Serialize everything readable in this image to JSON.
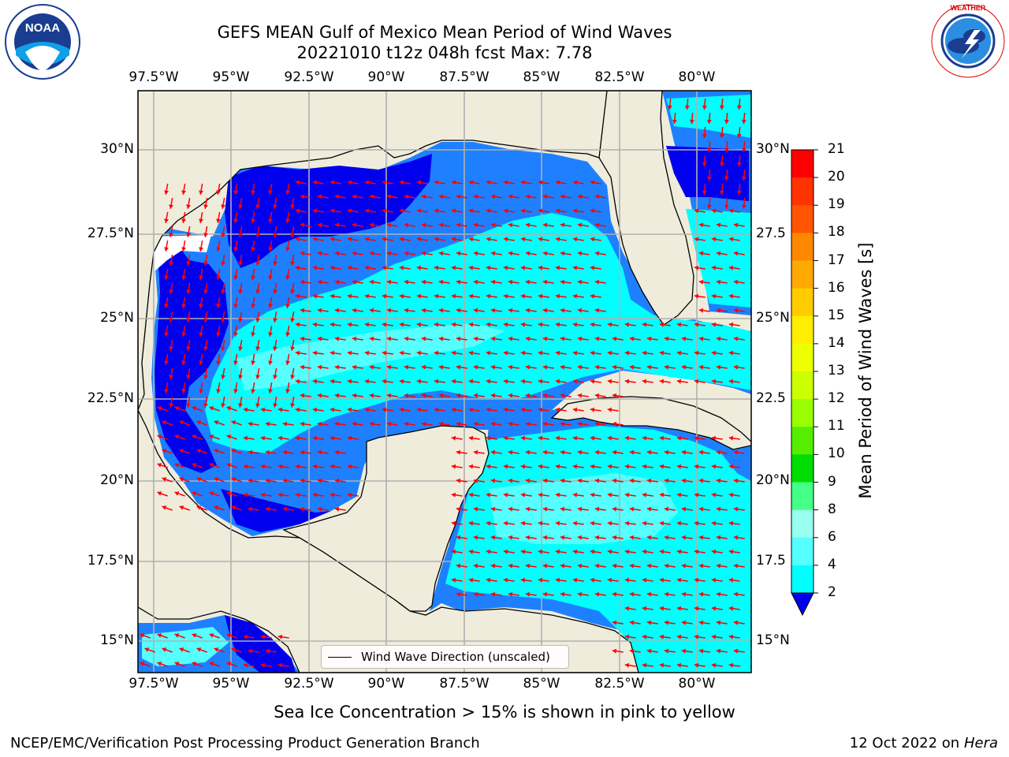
{
  "header": {
    "title_line1": "GEFS MEAN Gulf of Mexico Mean Period of Wind Waves",
    "title_line2": "20221010 t12z 048h fcst   Max: 7.78"
  },
  "logos": {
    "left": {
      "name": "noaa-logo",
      "text": "NOAA",
      "ring_text": "NATIONAL OCEANIC AND ATMOSPHERIC ADMINISTRATION · U.S. DEPARTMENT OF COMMERCE"
    },
    "right": {
      "name": "nws-logo",
      "ring_text": "NATIONAL WEATHER SERVICE"
    }
  },
  "map": {
    "lon_labels": [
      "97.5°W",
      "95°W",
      "92.5°W",
      "90°W",
      "87.5°W",
      "85°W",
      "82.5°W",
      "80°W"
    ],
    "lat_labels_left": [
      "30°N",
      "27.5°N",
      "25°N",
      "22.5°N",
      "20°N",
      "17.5°N",
      "15°N"
    ],
    "lat_labels_right": [
      "30°N",
      "27.5",
      "25°N",
      "22.5",
      "20°N",
      "17.5",
      "15°N"
    ],
    "legend_label": "Wind Wave Direction (unscaled)",
    "colors": {
      "land": "#efecdc",
      "ocean_blue": "#1e80ff",
      "dark_blue": "#0000ee",
      "cyan": "#00ffff",
      "light_cyan": "#55ffff",
      "arrow": "#ff0000"
    }
  },
  "colorbar": {
    "label": "Mean Period of Wind Waves [s]",
    "ticks": [
      "21",
      "20",
      "19",
      "18",
      "17",
      "16",
      "15",
      "14",
      "13",
      "12",
      "11",
      "10",
      "9",
      "8",
      "6",
      "4",
      "2"
    ],
    "colors": [
      "#ff0000",
      "#ff3300",
      "#ff5500",
      "#ff8800",
      "#ffaa00",
      "#ffcc00",
      "#ffee00",
      "#eeff00",
      "#ccff00",
      "#99ff00",
      "#55ee00",
      "#00dd00",
      "#44ff88",
      "#99ffee",
      "#55ffff",
      "#00ffff",
      "#1e80ff"
    ],
    "extend_color": "#0000ee"
  },
  "footer": {
    "ice_note": "Sea Ice Concentration > 15% is shown in pink to yellow",
    "left": "NCEP/EMC/Verification Post Processing Product Generation Branch",
    "right_date": "12 Oct 2022 on ",
    "right_host": "Hera"
  }
}
